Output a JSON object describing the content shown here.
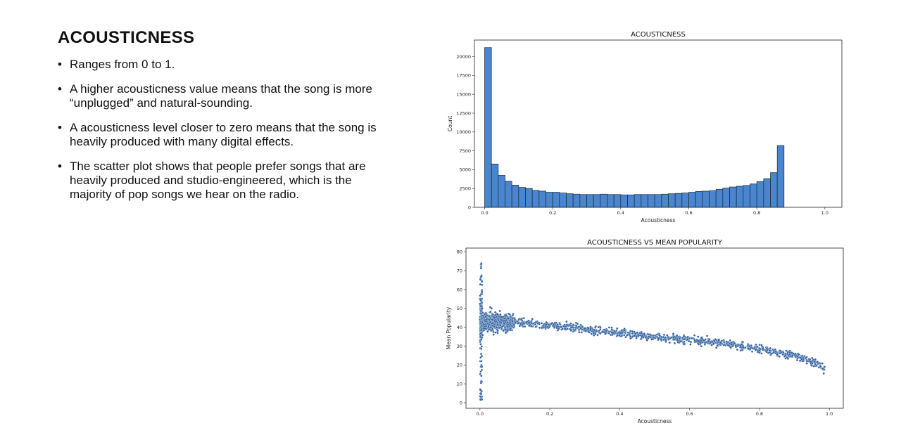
{
  "slide": {
    "title": "ACOUSTICNESS",
    "bullets": [
      " Ranges from 0 to 1.",
      "A higher acousticness value means that the song is more “unplugged” and natural-sounding.",
      "A acousticness level closer to zero means that the song is heavily produced with many digital effects.",
      "The scatter plot shows that people prefer songs that are heavily produced and studio-engineered, which is the majority of pop songs we hear on the radio."
    ]
  },
  "colors": {
    "bar_fill": "#4a86d0",
    "bar_edge": "#1c2733",
    "point_fill": "#2d5f9e",
    "point_edge": "#ffffff"
  },
  "chart_data": [
    {
      "type": "bar",
      "title": "ACOUSTICNESS",
      "xlabel": "Acousticness",
      "ylabel": "Count",
      "xlim": [
        -0.03,
        1.05
      ],
      "ylim": [
        0,
        22200
      ],
      "bin_width": 0.02,
      "bin_starts": [
        0.0,
        0.02,
        0.04,
        0.06,
        0.08,
        0.1,
        0.12,
        0.14,
        0.16,
        0.18,
        0.2,
        0.22,
        0.24,
        0.26,
        0.28,
        0.3,
        0.32,
        0.34,
        0.36,
        0.38,
        0.4,
        0.42,
        0.44,
        0.46,
        0.48,
        0.5,
        0.52,
        0.54,
        0.56,
        0.58,
        0.6,
        0.62,
        0.64,
        0.66,
        0.68,
        0.7,
        0.72,
        0.74,
        0.76,
        0.78,
        0.8,
        0.82,
        0.84,
        0.86,
        0.88,
        0.9,
        0.92,
        0.94,
        0.96,
        0.98
      ],
      "values": [
        21200,
        5750,
        4250,
        3450,
        2950,
        2650,
        2500,
        2250,
        2150,
        2000,
        2000,
        1900,
        1800,
        1750,
        1700,
        1700,
        1700,
        1750,
        1700,
        1700,
        1650,
        1650,
        1700,
        1700,
        1700,
        1700,
        1750,
        1800,
        1850,
        1900,
        2000,
        2100,
        2150,
        2200,
        2400,
        2550,
        2700,
        2800,
        2900,
        3100,
        3400,
        3800,
        4600,
        8200,
        0,
        0,
        0,
        0,
        0,
        0
      ],
      "xticks": [
        0.0,
        0.2,
        0.4,
        0.6,
        0.8,
        1.0
      ],
      "xtick_labels": [
        "0.0",
        "0.2",
        "0.4",
        "0.6",
        "0.8",
        "1.0"
      ],
      "yticks": [
        0,
        2500,
        5000,
        7500,
        10000,
        12500,
        15000,
        17500,
        20000
      ],
      "ytick_labels": [
        "0",
        "2500",
        "5000",
        "7500",
        "10000",
        "12500",
        "15000",
        "17500",
        "20000"
      ]
    },
    {
      "type": "scatter",
      "title": "ACOUSTICNESS VS MEAN POPULARITY",
      "xlabel": "Acousticness",
      "ylabel": "Mean Popularity",
      "xlim": [
        -0.04,
        1.04
      ],
      "ylim": [
        -3,
        82
      ],
      "xticks": [
        0.0,
        0.2,
        0.4,
        0.6,
        0.8,
        1.0
      ],
      "xtick_labels": [
        "0.0",
        "0.2",
        "0.4",
        "0.6",
        "0.8",
        "1.0"
      ],
      "yticks": [
        0,
        10,
        20,
        30,
        40,
        50,
        60,
        70,
        80
      ],
      "ytick_labels": [
        "0",
        "10",
        "20",
        "30",
        "40",
        "50",
        "60",
        "70",
        "80"
      ],
      "trend_x": [
        0.0,
        0.1,
        0.2,
        0.3,
        0.4,
        0.5,
        0.6,
        0.7,
        0.8,
        0.9,
        0.95,
        0.99
      ],
      "trend_y": [
        44,
        42.5,
        41,
        39,
        37,
        35,
        33.5,
        31.5,
        28.5,
        25,
        22,
        17.5
      ],
      "points_summary": "≈ 2000 points; wide spread 0–78 near acousticness 0, dense band 32–50 for 0–0.1, then decreasing band"
    }
  ]
}
